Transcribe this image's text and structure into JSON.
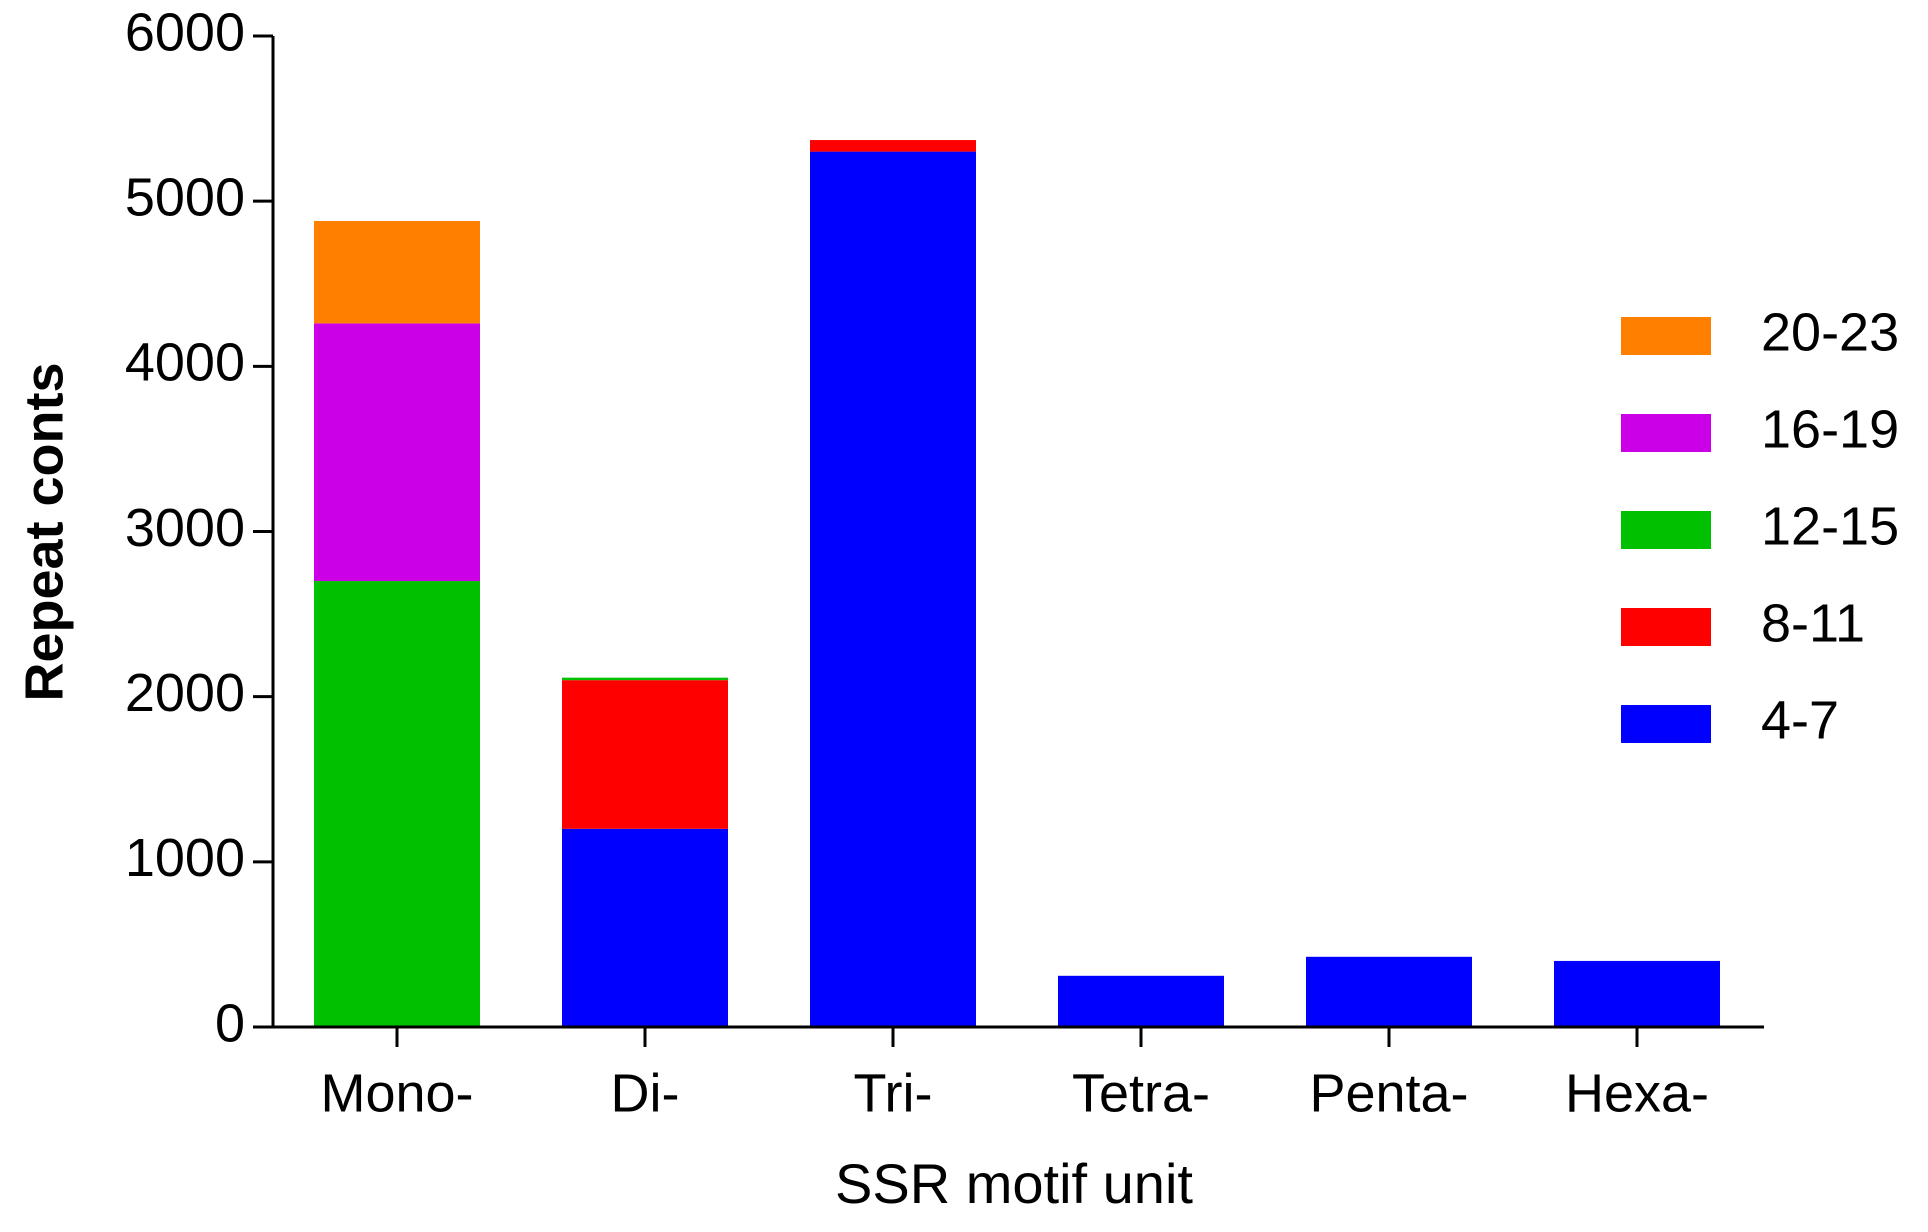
{
  "chart_data": {
    "type": "stacked-bar",
    "x_label": "SSR motif unit",
    "y_label": "Repeat conts",
    "categories": [
      "Mono-",
      "Di-",
      "Tri-",
      "Tetra-",
      "Penta-",
      "Hexa-"
    ],
    "series": [
      {
        "name": "4-7",
        "color": "#0000ff",
        "values": [
          null,
          1200,
          5300,
          310,
          425,
          400
        ]
      },
      {
        "name": "8-11",
        "color": "#ff0000",
        "values": [
          null,
          900,
          70,
          null,
          null,
          null
        ]
      },
      {
        "name": "12-15",
        "color": "#00c000",
        "values": [
          2700,
          15,
          null,
          null,
          null,
          null
        ]
      },
      {
        "name": "16-19",
        "color": "#cc00e6",
        "values": [
          1560,
          null,
          null,
          null,
          null,
          null
        ]
      },
      {
        "name": "20-23",
        "color": "#ff8000",
        "values": [
          620,
          null,
          null,
          null,
          null,
          null
        ]
      }
    ],
    "ylim": [
      0,
      6000
    ],
    "yticks": [
      0,
      1000,
      2000,
      3000,
      4000,
      5000,
      6000
    ]
  }
}
